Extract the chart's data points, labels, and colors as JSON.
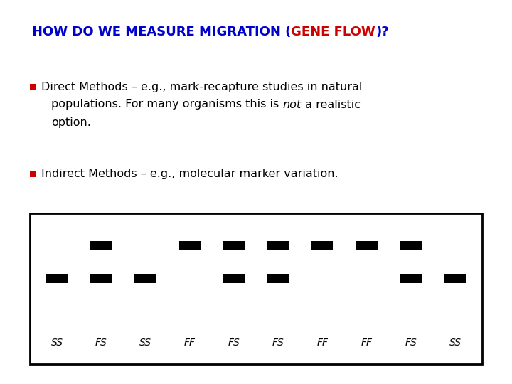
{
  "title_part1": "HOW DO WE MEASURE MIGRATION (",
  "title_part2": "GENE FLOW",
  "title_part3": ")?",
  "title_color1": "#0000CC",
  "title_color2": "#CC0000",
  "text_color": "#000000",
  "bullet_color": "#CC0000",
  "bg_color": "#ffffff",
  "bullet1_line1": "Direct Methods – e.g., mark-recapture studies in natural",
  "bullet1_line2": "populations. For many organisms this is ",
  "bullet1_italic": "not",
  "bullet1_line3": " a realistic",
  "bullet1_line4": "option.",
  "bullet2": "Indirect Methods – e.g., molecular marker variation.",
  "gel_labels": [
    "SS",
    "FS",
    "SS",
    "FF",
    "FS",
    "FS",
    "FF",
    "FF",
    "FS",
    "SS"
  ],
  "title_fontsize": 13,
  "body_fontsize": 11.5,
  "label_fontsize": 10
}
